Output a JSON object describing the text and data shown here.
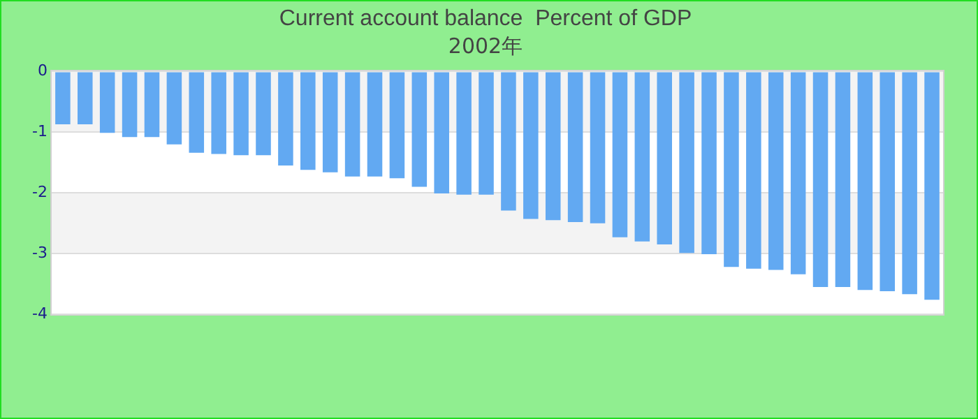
{
  "chart_data": {
    "type": "bar",
    "title": "Current account balance  Percent of GDP",
    "subtitle": "2002年",
    "categories": [
      null,
      null,
      null,
      null,
      null,
      null,
      null,
      null,
      null,
      null,
      null,
      null,
      null,
      null,
      null,
      null,
      null,
      null,
      null,
      null,
      null,
      null,
      null,
      null,
      null,
      null,
      null,
      null,
      null,
      null,
      null,
      null,
      null,
      null,
      null,
      null,
      null,
      null,
      null,
      null
    ],
    "values": [
      -0.87,
      -0.87,
      -1.01,
      -1.08,
      -1.08,
      -1.2,
      -1.34,
      -1.36,
      -1.38,
      -1.38,
      -1.55,
      -1.62,
      -1.66,
      -1.73,
      -1.73,
      -1.76,
      -1.9,
      -2.01,
      -2.03,
      -2.03,
      -2.29,
      -2.43,
      -2.45,
      -2.48,
      -2.5,
      -2.73,
      -2.8,
      -2.85,
      -2.99,
      -3.01,
      -3.22,
      -3.25,
      -3.27,
      -3.34,
      -3.55,
      -3.55,
      -3.6,
      -3.62,
      -3.67,
      -3.76
    ],
    "color": "#62a9f2",
    "ylim": [
      -4,
      0
    ],
    "yticks": [
      -4,
      -3,
      -2,
      -1,
      0
    ],
    "tick_labels": "y",
    "grid": "y"
  }
}
